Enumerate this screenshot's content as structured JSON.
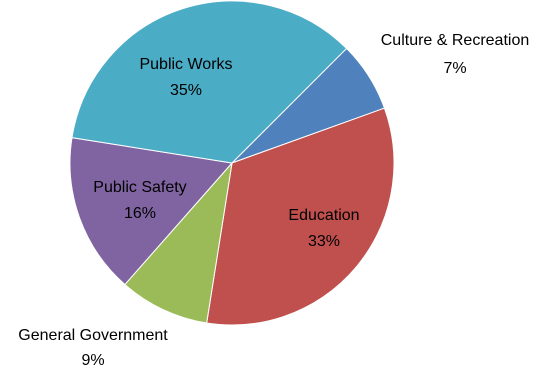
{
  "chart_data": {
    "type": "pie",
    "slices": [
      {
        "label": "Culture & Recreation",
        "value": 7,
        "percent_label": "7%",
        "color": "#4F81BD"
      },
      {
        "label": "Education",
        "value": 33,
        "percent_label": "33%",
        "color": "#C0504D"
      },
      {
        "label": "General Government",
        "value": 9,
        "percent_label": "9%",
        "color": "#9BBB59"
      },
      {
        "label": "Public Safety",
        "value": 16,
        "percent_label": "16%",
        "color": "#8064A2"
      },
      {
        "label": "Public Works",
        "value": 35,
        "percent_label": "35%",
        "color": "#4BACC6"
      }
    ],
    "total": 100,
    "legend": "none",
    "label_placement": "data labels (category name and percentage)"
  }
}
